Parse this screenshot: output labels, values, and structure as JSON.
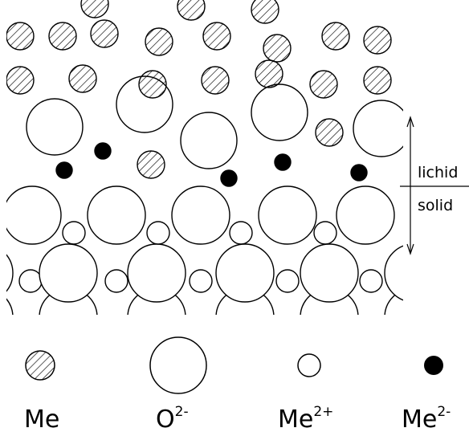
{
  "labels": {
    "upper": "lichid",
    "lower": "solid"
  },
  "legend": [
    {
      "label": "Me"
    },
    {
      "label": "O",
      "superscript": "2-"
    },
    {
      "label": "Me",
      "superscript": "2+"
    },
    {
      "label": "Me",
      "superscript": "2-"
    }
  ]
}
